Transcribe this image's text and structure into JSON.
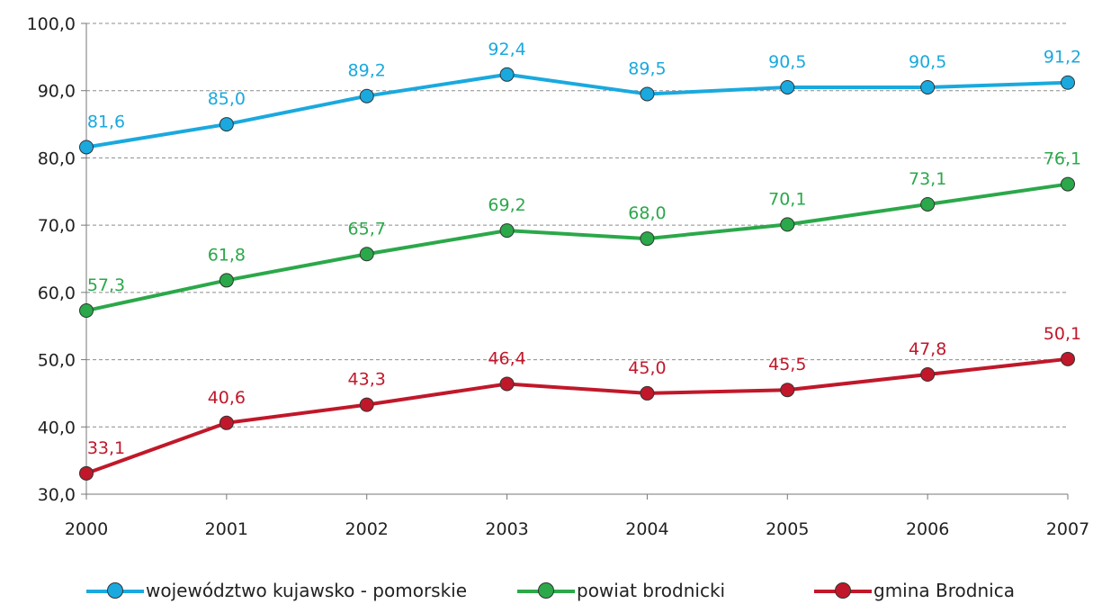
{
  "chart_data": {
    "type": "line",
    "title": "",
    "xlabel": "",
    "ylabel": "",
    "categories": [
      "2000",
      "2001",
      "2002",
      "2003",
      "2004",
      "2005",
      "2006",
      "2007"
    ],
    "ylim": [
      30,
      100
    ],
    "y_ticks": [
      "30,0",
      "40,0",
      "50,0",
      "60,0",
      "70,0",
      "80,0",
      "90,0",
      "100,0"
    ],
    "grid": "horizontal dashed",
    "legend_position": "bottom",
    "series": [
      {
        "name": "województwo kujawsko - pomorskie",
        "color": "#1AA9DE",
        "values": [
          81.6,
          85.0,
          89.2,
          92.4,
          89.5,
          90.5,
          90.5,
          91.2
        ],
        "labels": [
          "81,6",
          "85,0",
          "89,2",
          "92,4",
          "89,5",
          "90,5",
          "90,5",
          "91,2"
        ]
      },
      {
        "name": "powiat brodnicki",
        "color": "#2BA84A",
        "values": [
          57.3,
          61.8,
          65.7,
          69.2,
          68.0,
          70.1,
          73.1,
          76.1
        ],
        "labels": [
          "57,3",
          "61,8",
          "65,7",
          "69,2",
          "68,0",
          "70,1",
          "73,1",
          "76,1"
        ]
      },
      {
        "name": "gmina Brodnica",
        "color": "#C0182A",
        "values": [
          33.1,
          40.6,
          43.3,
          46.4,
          45.0,
          45.5,
          47.8,
          50.1
        ],
        "labels": [
          "33,1",
          "40,6",
          "43,3",
          "46,4",
          "45,0",
          "45,5",
          "47,8",
          "50,1"
        ]
      }
    ]
  }
}
